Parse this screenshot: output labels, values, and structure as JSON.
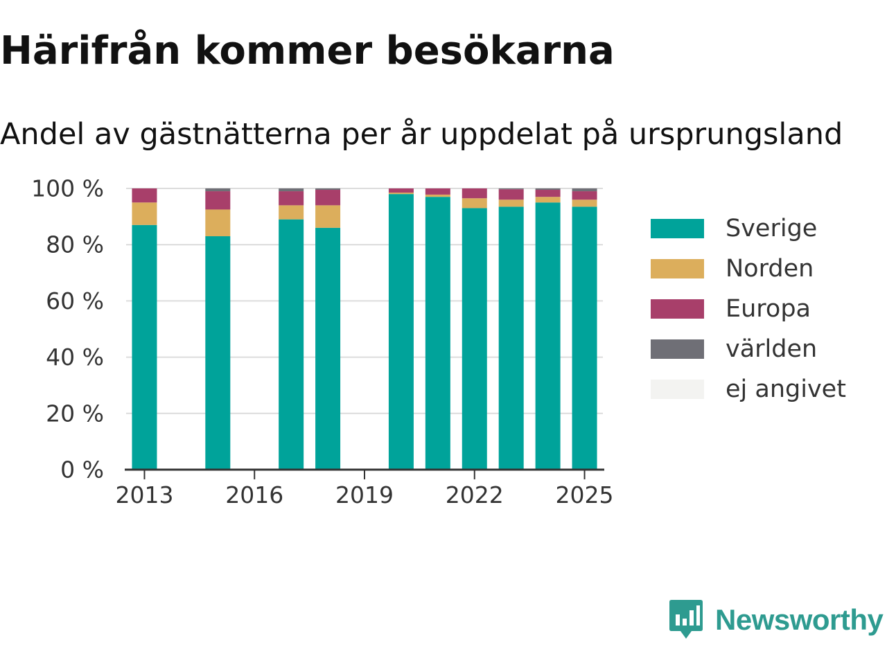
{
  "header": {
    "title": "Härifrån kommer besökarna",
    "subtitle": "Andel av gästnätterna per år uppdelat på ursprungsland"
  },
  "chart_data": {
    "type": "bar",
    "stacked": true,
    "title": "Härifrån kommer besökarna",
    "subtitle": "Andel av gästnätterna per år uppdelat på ursprungsland",
    "xlabel": "",
    "ylabel": "",
    "categories": [
      "2013",
      "2015",
      "2017",
      "2018",
      "2020",
      "2021",
      "2022",
      "2023",
      "2024",
      "2025"
    ],
    "x_ticks": [
      "2013",
      "2016",
      "2019",
      "2022",
      "2025"
    ],
    "x_range": [
      2012.5,
      2025.5
    ],
    "y_ticks": [
      "0 %",
      "20 %",
      "40 %",
      "60 %",
      "80 %",
      "100 %"
    ],
    "ylim": [
      0,
      100
    ],
    "grid": true,
    "legend_position": "right",
    "series": [
      {
        "name": "Sverige",
        "color": "#00a39a",
        "values": [
          87,
          83,
          89,
          86,
          98,
          97,
          93,
          93.5,
          95,
          93.5
        ]
      },
      {
        "name": "Norden",
        "color": "#dcae5c",
        "values": [
          8,
          9.5,
          5,
          8,
          0.5,
          0.8,
          3.5,
          2.5,
          2,
          2.5
        ]
      },
      {
        "name": "Europa",
        "color": "#a83f6a",
        "values": [
          5,
          6.5,
          5,
          5.5,
          1.5,
          2.2,
          3.5,
          3.7,
          2.5,
          3
        ]
      },
      {
        "name": "världen",
        "color": "#6f6f76",
        "values": [
          0,
          1,
          1,
          0.5,
          0,
          0,
          0,
          0.3,
          0.5,
          1
        ]
      },
      {
        "name": "ej angivet",
        "color": "#f3f3f1",
        "values": [
          0,
          0,
          0,
          0,
          0,
          0,
          0,
          0,
          0,
          0
        ]
      }
    ]
  },
  "logo": {
    "text": "Newsworthy",
    "color": "#2e9b90",
    "icon": "newsworthy-chat-bars-icon"
  }
}
